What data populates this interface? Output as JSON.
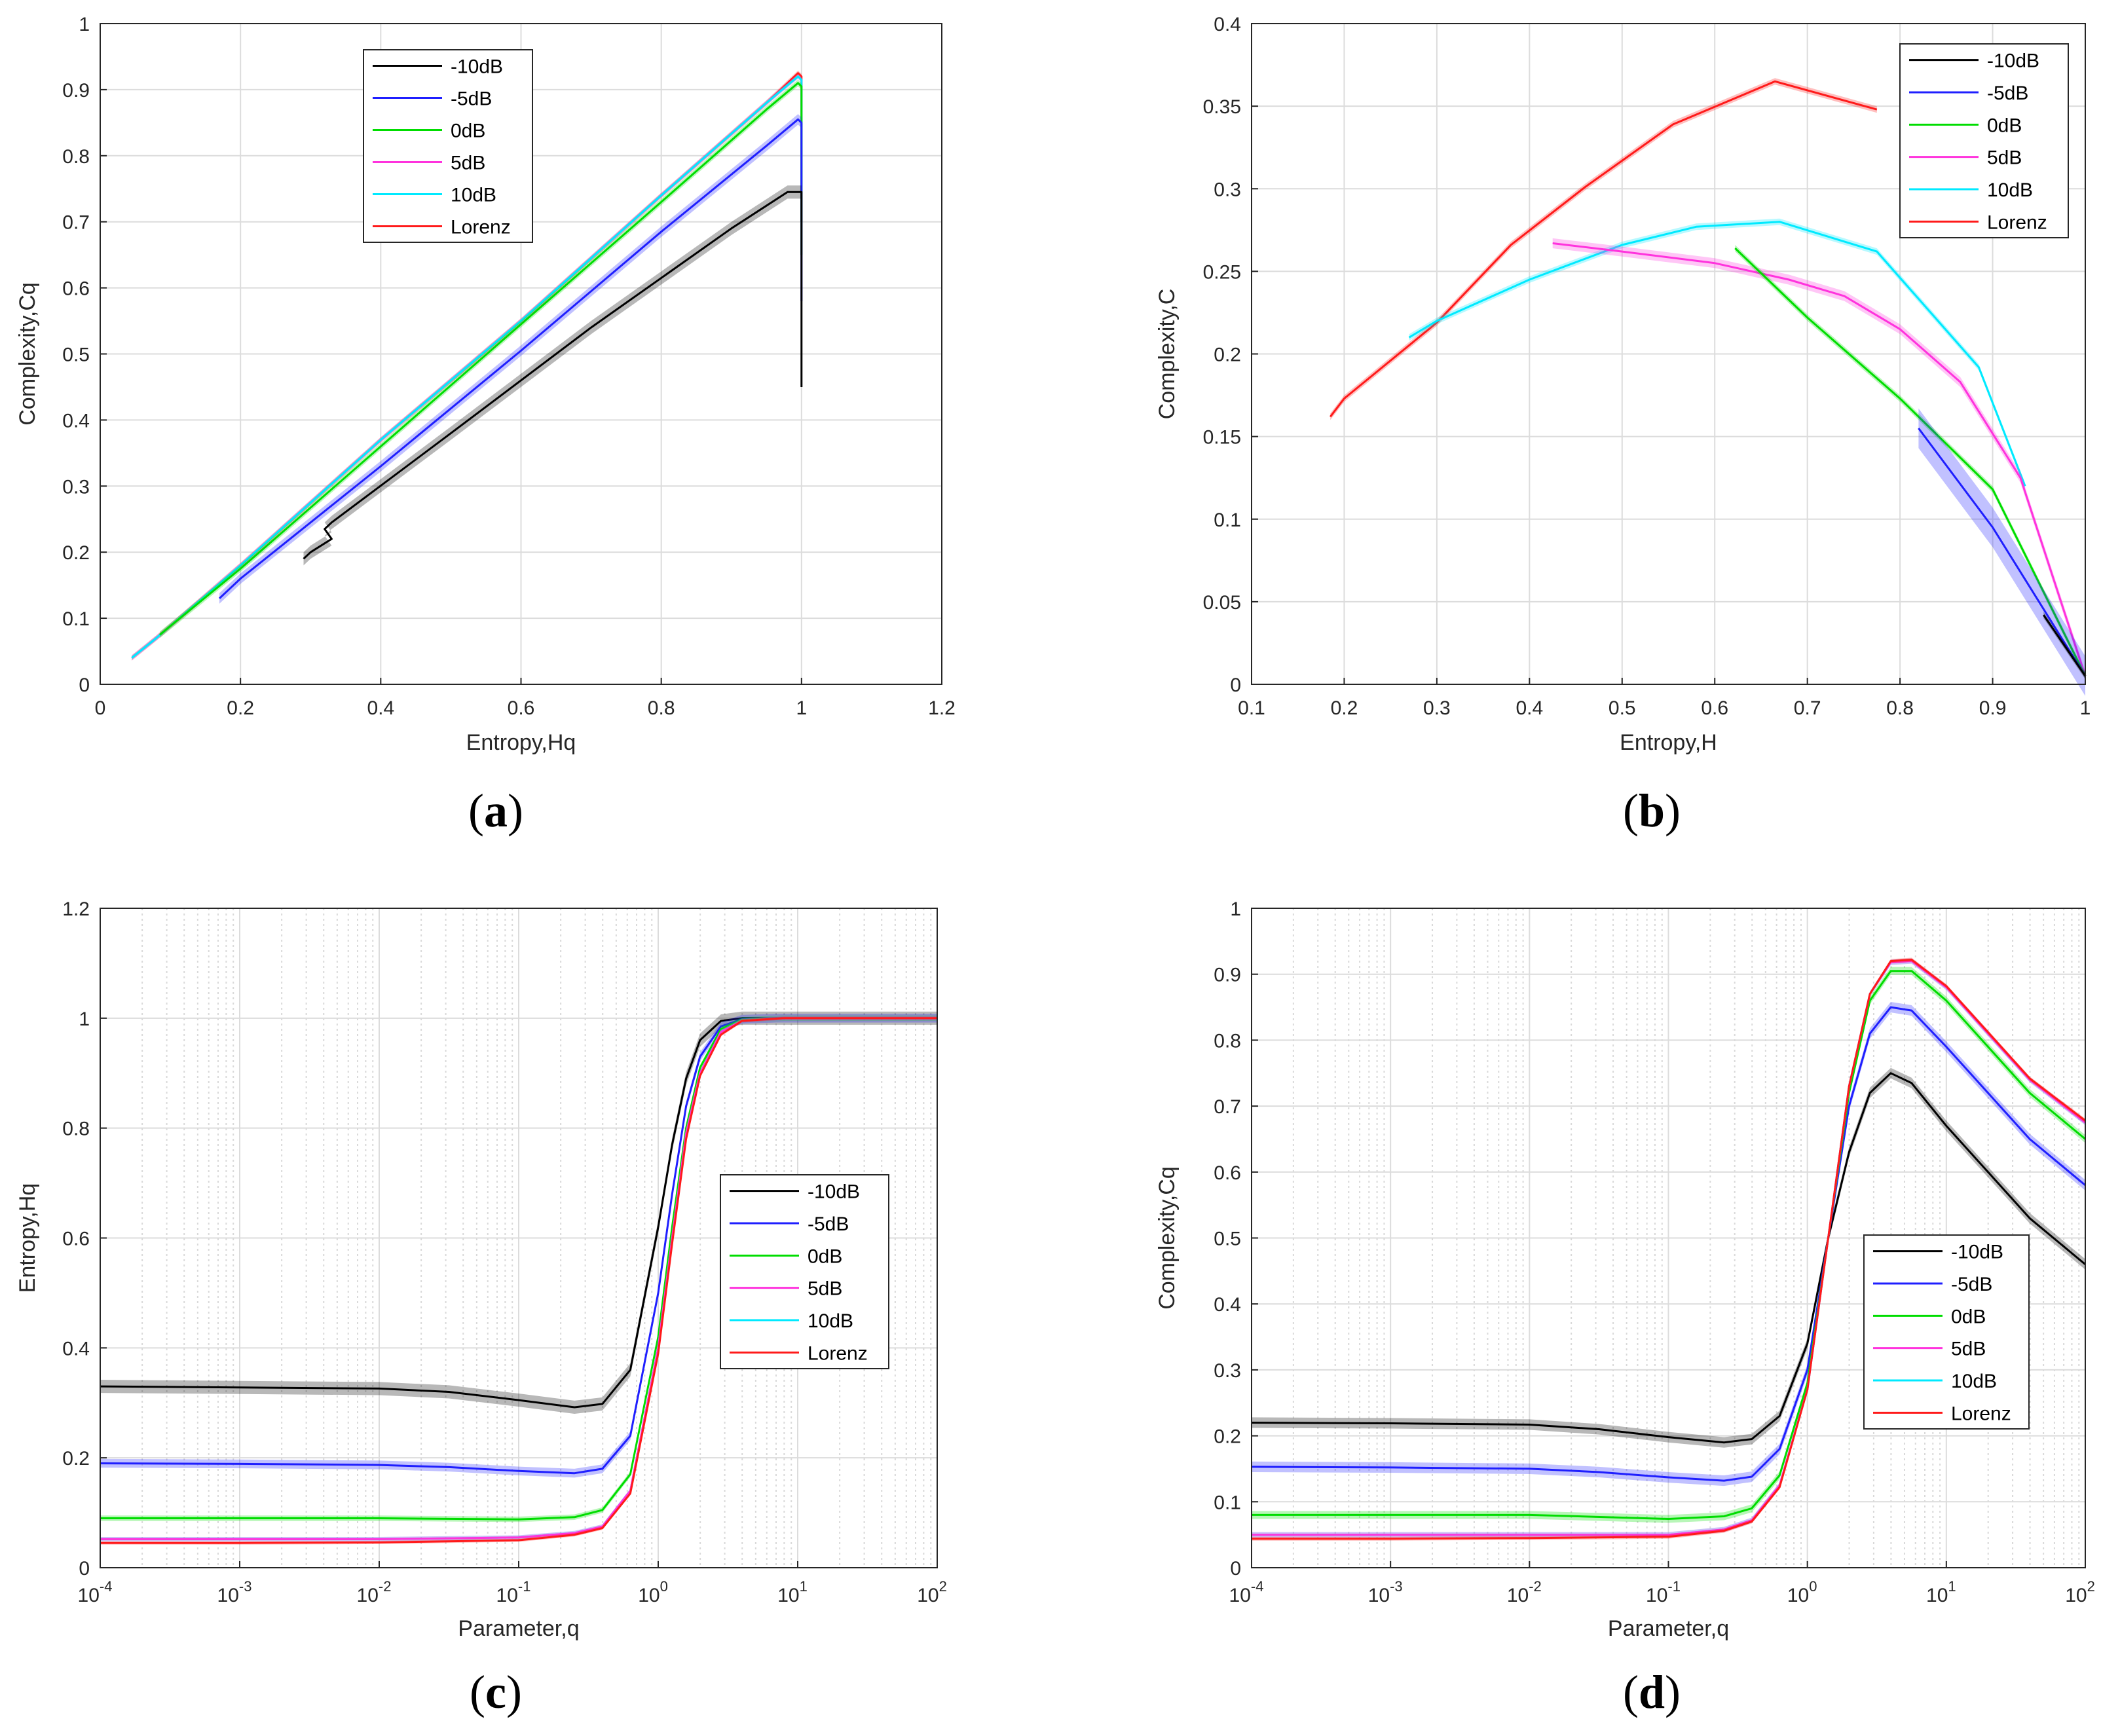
{
  "colors": {
    "-10dB": "#000000",
    "-5dB": "#1f1fff",
    "0dB": "#00dd00",
    "5dB": "#ff33dd",
    "10dB": "#00eaff",
    "Lorenz": "#ff1a1a"
  },
  "chart_data": [
    {
      "id": "a",
      "panel_label": [
        "(",
        "a",
        ")"
      ],
      "type": "line",
      "xlabel": "Entropy,Hq",
      "ylabel": "Complexity,Cq",
      "xlim": [
        0,
        1.2
      ],
      "ylim": [
        0,
        1
      ],
      "xscale": "linear",
      "xticks": [
        0,
        0.2,
        0.4,
        0.6,
        0.8,
        1,
        1.2
      ],
      "xtick_labels": [
        "0",
        "0.2",
        "0.4",
        "0.6",
        "0.8",
        "1",
        "1.2"
      ],
      "yticks": [
        0,
        0.1,
        0.2,
        0.3,
        0.4,
        0.5,
        0.6,
        0.7,
        0.8,
        0.9,
        1
      ],
      "ytick_labels": [
        "0",
        "0.1",
        "0.2",
        "0.3",
        "0.4",
        "0.5",
        "0.6",
        "0.7",
        "0.8",
        "0.9",
        "1"
      ],
      "legend": {
        "position": "top-center",
        "entries": [
          "-10dB",
          "-5dB",
          "0dB",
          "5dB",
          "10dB",
          "Lorenz"
        ]
      },
      "series": [
        {
          "name": "Lorenz",
          "x": [
            0.045,
            0.08,
            0.2,
            0.4,
            0.6,
            0.8,
            0.95,
            0.995,
            1.0,
            1.0
          ],
          "y": [
            0.04,
            0.07,
            0.18,
            0.37,
            0.55,
            0.74,
            0.88,
            0.925,
            0.92,
            0.7
          ],
          "band": 0.004
        },
        {
          "name": "5dB",
          "x": [
            0.045,
            0.08,
            0.2,
            0.4,
            0.6,
            0.8,
            0.95,
            0.995,
            1.0,
            1.0
          ],
          "y": [
            0.04,
            0.07,
            0.18,
            0.37,
            0.55,
            0.74,
            0.88,
            0.92,
            0.915,
            0.7
          ],
          "band": 0.004
        },
        {
          "name": "10dB",
          "x": [
            0.045,
            0.08,
            0.2,
            0.4,
            0.6,
            0.8,
            0.95,
            0.995,
            1.0,
            1.0
          ],
          "y": [
            0.04,
            0.07,
            0.18,
            0.37,
            0.55,
            0.74,
            0.88,
            0.92,
            0.915,
            0.7
          ],
          "band": 0.003
        },
        {
          "name": "0dB",
          "x": [
            0.085,
            0.2,
            0.4,
            0.6,
            0.8,
            0.95,
            0.995,
            1.0,
            1.0
          ],
          "y": [
            0.075,
            0.175,
            0.36,
            0.545,
            0.73,
            0.87,
            0.91,
            0.905,
            0.65
          ],
          "band": 0.005
        },
        {
          "name": "-5dB",
          "x": [
            0.17,
            0.2,
            0.4,
            0.6,
            0.8,
            0.95,
            0.995,
            1.0,
            1.0
          ],
          "y": [
            0.13,
            0.16,
            0.33,
            0.505,
            0.685,
            0.815,
            0.855,
            0.85,
            0.58
          ],
          "band": 0.008
        },
        {
          "name": "-10dB",
          "x": [
            0.29,
            0.3,
            0.33,
            0.32,
            0.33,
            0.5,
            0.7,
            0.9,
            0.98,
            1.0,
            1.0
          ],
          "y": [
            0.19,
            0.2,
            0.22,
            0.235,
            0.245,
            0.38,
            0.54,
            0.69,
            0.745,
            0.745,
            0.45
          ],
          "band": 0.01
        }
      ]
    },
    {
      "id": "b",
      "panel_label": [
        "(",
        "b",
        ")"
      ],
      "type": "line",
      "xlabel": "Entropy,H",
      "ylabel": "Complexity,C",
      "xlim": [
        0.1,
        1
      ],
      "ylim": [
        0,
        0.4
      ],
      "xscale": "linear",
      "xticks": [
        0.1,
        0.2,
        0.3,
        0.4,
        0.5,
        0.6,
        0.7,
        0.8,
        0.9,
        1
      ],
      "xtick_labels": [
        "0.1",
        "0.2",
        "0.3",
        "0.4",
        "0.5",
        "0.6",
        "0.7",
        "0.8",
        "0.9",
        "1"
      ],
      "yticks": [
        0,
        0.05,
        0.1,
        0.15,
        0.2,
        0.25,
        0.3,
        0.35,
        0.4
      ],
      "ytick_labels": [
        "0",
        "0.05",
        "0.1",
        "0.15",
        "0.2",
        "0.25",
        "0.3",
        "0.35",
        "0.4"
      ],
      "legend": {
        "position": "top-right",
        "entries": [
          "-10dB",
          "-5dB",
          "0dB",
          "5dB",
          "10dB",
          "Lorenz"
        ]
      },
      "series": [
        {
          "name": "Lorenz",
          "x": [
            0.185,
            0.2,
            0.3,
            0.38,
            0.46,
            0.555,
            0.665,
            0.775
          ],
          "y": [
            0.162,
            0.173,
            0.219,
            0.266,
            0.301,
            0.339,
            0.365,
            0.348
          ],
          "band": 0.002
        },
        {
          "name": "10dB",
          "x": [
            0.27,
            0.3,
            0.4,
            0.5,
            0.58,
            0.67,
            0.775,
            0.885,
            0.935
          ],
          "y": [
            0.21,
            0.22,
            0.245,
            0.266,
            0.277,
            0.28,
            0.262,
            0.192,
            0.12
          ],
          "band": 0.002
        },
        {
          "name": "5dB",
          "x": [
            0.425,
            0.5,
            0.6,
            0.68,
            0.74,
            0.8,
            0.865,
            0.93,
            1.0
          ],
          "y": [
            0.267,
            0.262,
            0.255,
            0.245,
            0.235,
            0.215,
            0.183,
            0.125,
            0.005
          ],
          "band": 0.003
        },
        {
          "name": "0dB",
          "x": [
            0.622,
            0.7,
            0.8,
            0.9,
            1.0
          ],
          "y": [
            0.264,
            0.222,
            0.173,
            0.118,
            0.005
          ],
          "band": 0.002
        },
        {
          "name": "-5dB",
          "x": [
            0.82,
            0.9,
            1.0
          ],
          "y": [
            0.155,
            0.095,
            0.005
          ],
          "band": 0.012
        },
        {
          "name": "-10dB",
          "x": [
            0.955,
            1.0
          ],
          "y": [
            0.042,
            0.005
          ],
          "band": 0.002
        }
      ]
    },
    {
      "id": "c",
      "panel_label": [
        "(",
        "c",
        ")"
      ],
      "type": "line",
      "xlabel": "Parameter,q",
      "ylabel": "Entropy,Hq",
      "xlim": [
        -4,
        2
      ],
      "ylim": [
        0,
        1.2
      ],
      "xscale": "log",
      "xtick_exponents": [
        "-4",
        "-3",
        "-2",
        "-1",
        "0",
        "1",
        "2"
      ],
      "xtick_base": "10",
      "yticks": [
        0,
        0.2,
        0.4,
        0.6,
        0.8,
        1,
        1.2
      ],
      "ytick_labels": [
        "0",
        "0.2",
        "0.4",
        "0.6",
        "0.8",
        "1",
        "1.2"
      ],
      "legend": {
        "position": "center-right",
        "entries": [
          "-10dB",
          "-5dB",
          "0dB",
          "5dB",
          "10dB",
          "Lorenz"
        ]
      },
      "series": [
        {
          "name": "-10dB",
          "log10_x": [
            -4,
            -3,
            -2,
            -1.5,
            -1,
            -0.6,
            -0.4,
            -0.2,
            0,
            0.1,
            0.2,
            0.3,
            0.45,
            0.6,
            0.8,
            2
          ],
          "y": [
            0.33,
            0.328,
            0.326,
            0.32,
            0.305,
            0.292,
            0.298,
            0.36,
            0.62,
            0.77,
            0.89,
            0.96,
            0.995,
            1.0,
            1.0,
            1.0
          ],
          "band": 0.012
        },
        {
          "name": "-5dB",
          "log10_x": [
            -4,
            -3,
            -2,
            -1.5,
            -1,
            -0.6,
            -0.4,
            -0.2,
            0,
            0.1,
            0.2,
            0.3,
            0.45,
            0.6,
            0.85,
            2
          ],
          "y": [
            0.19,
            0.189,
            0.187,
            0.183,
            0.176,
            0.172,
            0.18,
            0.24,
            0.5,
            0.68,
            0.84,
            0.93,
            0.985,
            0.998,
            1.0,
            1.0
          ],
          "band": 0.008
        },
        {
          "name": "0dB",
          "log10_x": [
            -4,
            -3,
            -2,
            -1,
            -0.6,
            -0.4,
            -0.2,
            0,
            0.1,
            0.2,
            0.3,
            0.45,
            0.6,
            0.9,
            2
          ],
          "y": [
            0.09,
            0.09,
            0.09,
            0.088,
            0.092,
            0.105,
            0.17,
            0.42,
            0.62,
            0.8,
            0.91,
            0.98,
            0.997,
            1.0,
            1.0
          ],
          "band": 0.005
        },
        {
          "name": "10dB",
          "log10_x": [
            -4,
            -3,
            -2,
            -1,
            -0.6,
            -0.4,
            -0.2,
            0,
            0.1,
            0.2,
            0.3,
            0.45,
            0.6,
            0.9,
            2
          ],
          "y": [
            0.052,
            0.052,
            0.052,
            0.055,
            0.063,
            0.075,
            0.14,
            0.4,
            0.6,
            0.79,
            0.9,
            0.975,
            0.995,
            1.0,
            1.0
          ],
          "band": 0.004
        },
        {
          "name": "5dB",
          "log10_x": [
            -4,
            -3,
            -2,
            -1,
            -0.6,
            -0.4,
            -0.2,
            0,
            0.1,
            0.2,
            0.3,
            0.45,
            0.6,
            0.9,
            2
          ],
          "y": [
            0.052,
            0.052,
            0.052,
            0.055,
            0.063,
            0.075,
            0.14,
            0.4,
            0.6,
            0.79,
            0.9,
            0.975,
            0.995,
            1.0,
            1.0
          ],
          "band": 0.004
        },
        {
          "name": "Lorenz",
          "log10_x": [
            -4,
            -3,
            -2,
            -1,
            -0.6,
            -0.4,
            -0.2,
            0,
            0.1,
            0.2,
            0.3,
            0.45,
            0.6,
            0.9,
            2
          ],
          "y": [
            0.045,
            0.045,
            0.046,
            0.05,
            0.06,
            0.072,
            0.135,
            0.39,
            0.59,
            0.78,
            0.895,
            0.97,
            0.995,
            1.0,
            1.0
          ],
          "band": 0.003
        }
      ]
    },
    {
      "id": "d",
      "panel_label": [
        "(",
        "d",
        ")"
      ],
      "type": "line",
      "xlabel": "Parameter,q",
      "ylabel": "Complexity,Cq",
      "xlim": [
        -4,
        2
      ],
      "ylim": [
        0,
        1
      ],
      "xscale": "log",
      "xtick_exponents": [
        "-4",
        "-3",
        "-2",
        "-1",
        "0",
        "1",
        "2"
      ],
      "xtick_base": "10",
      "yticks": [
        0,
        0.1,
        0.2,
        0.3,
        0.4,
        0.5,
        0.6,
        0.7,
        0.8,
        0.9,
        1
      ],
      "ytick_labels": [
        "0",
        "0.1",
        "0.2",
        "0.3",
        "0.4",
        "0.5",
        "0.6",
        "0.7",
        "0.8",
        "0.9",
        "1"
      ],
      "legend": {
        "position": "center-right",
        "entries": [
          "-10dB",
          "-5dB",
          "0dB",
          "5dB",
          "10dB",
          "Lorenz"
        ]
      },
      "series": [
        {
          "name": "-10dB",
          "log10_x": [
            -4,
            -3,
            -2,
            -1.5,
            -1,
            -0.6,
            -0.4,
            -0.2,
            0,
            0.15,
            0.3,
            0.45,
            0.6,
            0.75,
            1,
            1.3,
            1.6,
            2
          ],
          "y": [
            0.22,
            0.219,
            0.217,
            0.21,
            0.198,
            0.19,
            0.195,
            0.23,
            0.34,
            0.5,
            0.63,
            0.72,
            0.75,
            0.735,
            0.67,
            0.6,
            0.53,
            0.46
          ],
          "band": 0.008
        },
        {
          "name": "-5dB",
          "log10_x": [
            -4,
            -3,
            -2,
            -1.5,
            -1,
            -0.6,
            -0.4,
            -0.2,
            0,
            0.15,
            0.3,
            0.45,
            0.6,
            0.75,
            1,
            1.3,
            1.6,
            2
          ],
          "y": [
            0.153,
            0.152,
            0.15,
            0.145,
            0.137,
            0.132,
            0.138,
            0.18,
            0.3,
            0.5,
            0.7,
            0.81,
            0.85,
            0.845,
            0.79,
            0.72,
            0.65,
            0.58
          ],
          "band": 0.008
        },
        {
          "name": "0dB",
          "log10_x": [
            -4,
            -3,
            -2,
            -1,
            -0.6,
            -0.4,
            -0.2,
            0,
            0.15,
            0.3,
            0.45,
            0.6,
            0.75,
            1,
            1.3,
            1.6,
            2
          ],
          "y": [
            0.08,
            0.08,
            0.08,
            0.074,
            0.078,
            0.09,
            0.14,
            0.28,
            0.5,
            0.72,
            0.86,
            0.905,
            0.905,
            0.86,
            0.79,
            0.72,
            0.65
          ],
          "band": 0.006
        },
        {
          "name": "10dB",
          "log10_x": [
            -4,
            -3,
            -2,
            -1,
            -0.6,
            -0.4,
            -0.2,
            0,
            0.15,
            0.3,
            0.45,
            0.6,
            0.75,
            1,
            1.3,
            1.6,
            2
          ],
          "y": [
            0.05,
            0.05,
            0.05,
            0.05,
            0.058,
            0.072,
            0.125,
            0.27,
            0.5,
            0.73,
            0.87,
            0.918,
            0.92,
            0.88,
            0.81,
            0.74,
            0.675
          ],
          "band": 0.004
        },
        {
          "name": "5dB",
          "log10_x": [
            -4,
            -3,
            -2,
            -1,
            -0.6,
            -0.4,
            -0.2,
            0,
            0.15,
            0.3,
            0.45,
            0.6,
            0.75,
            1,
            1.3,
            1.6,
            2
          ],
          "y": [
            0.05,
            0.05,
            0.05,
            0.05,
            0.058,
            0.072,
            0.125,
            0.27,
            0.5,
            0.73,
            0.87,
            0.918,
            0.92,
            0.88,
            0.81,
            0.74,
            0.675
          ],
          "band": 0.004
        },
        {
          "name": "Lorenz",
          "log10_x": [
            -4,
            -3,
            -2,
            -1,
            -0.6,
            -0.4,
            -0.2,
            0,
            0.15,
            0.3,
            0.45,
            0.6,
            0.75,
            1,
            1.3,
            1.6,
            2
          ],
          "y": [
            0.044,
            0.044,
            0.045,
            0.047,
            0.056,
            0.07,
            0.122,
            0.27,
            0.5,
            0.73,
            0.87,
            0.92,
            0.922,
            0.882,
            0.812,
            0.742,
            0.678
          ],
          "band": 0.003
        }
      ]
    }
  ]
}
